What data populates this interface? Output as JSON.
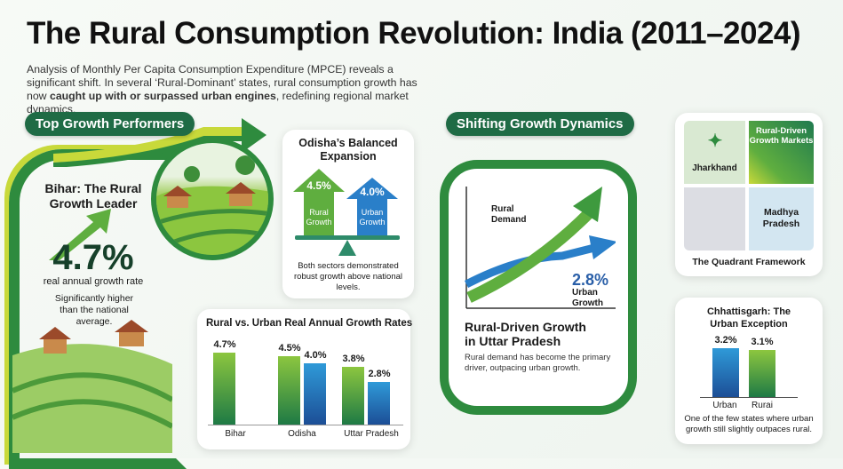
{
  "title": "The Rural Consumption Revolution: India (2011–2024)",
  "subtitle_plain": "Analysis of Monthly Per Capita Consumption Expenditure (MPCE) reveals a significant shift. In several ‘Rural-Dominant’ states, rural consumption growth has now ",
  "subtitle_bold": "caught up with or surpassed urban engines",
  "subtitle_end": ", redefining regional market dynamics.",
  "left_section": {
    "label": "Top Growth Performers"
  },
  "bihar": {
    "title": "Bihar: The Rural Growth Leader",
    "value": "4.7%",
    "caption": "real annual growth rate",
    "note": "Significantly higher than the national average."
  },
  "odisha": {
    "title": "Odisha’s Balanced Expansion",
    "rural_value": "4.5%",
    "rural_label": "Rural Growth",
    "urban_value": "4.0%",
    "urban_label": "Urban Growth",
    "note": "Both sectors demonstrated robust growth above national levels."
  },
  "right_section": {
    "label": "Shifting Growth Dynamics"
  },
  "uttar_pradesh": {
    "rural_label": "Rural Demand",
    "urban_value": "2.8%",
    "urban_label": "Urban Growth",
    "title": "Rural-Driven Growth in Uttar Pradesh",
    "note": "Rural demand has become the primary driver, outpacing urban growth."
  },
  "quadrant": {
    "top_left": "Jharkhand",
    "top_right": "Rural-Driven Growth Markets",
    "bottom_right": "Madhya Pradesh",
    "caption": "The Quadrant Framework"
  },
  "colors": {
    "dark_green": "#1f6b45",
    "green": "#8cc63f",
    "blue": "#2a7fc9"
  },
  "chart_data": [
    {
      "type": "bar",
      "title": "Rural vs. Urban Real Annual Growth Rates",
      "categories": [
        "Bihar",
        "Odisha",
        "Uttar Pradesh"
      ],
      "series": [
        {
          "name": "Rural",
          "values": [
            4.7,
            4.5,
            3.8
          ],
          "labels": [
            "4.7%",
            "4.5%",
            "3.8%"
          ]
        },
        {
          "name": "Urban",
          "values": [
            null,
            4.0,
            2.8
          ],
          "labels": [
            "",
            "4.0%",
            "2.8%"
          ]
        }
      ],
      "ylim": [
        0,
        5
      ]
    },
    {
      "type": "bar",
      "title": "Chhattisgarh: The Urban Exception",
      "categories": [
        "Urban",
        "Rurai"
      ],
      "values": [
        3.2,
        3.1
      ],
      "labels": [
        "3.2%",
        "3.1%"
      ],
      "note": "One of the few states where urban growth still slightly outpaces rural.",
      "ylim": [
        0,
        3.5
      ]
    }
  ]
}
